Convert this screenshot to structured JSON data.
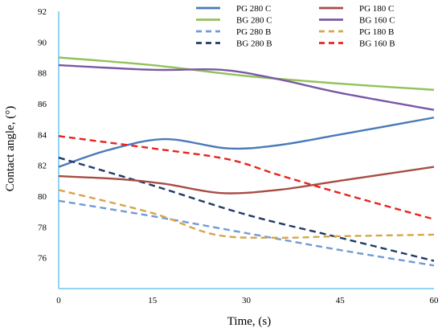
{
  "chart_data": {
    "type": "line",
    "xlabel": "Time, (s)",
    "ylabel": "Contact angle, (°)",
    "xlim": [
      0,
      60
    ],
    "ylim": [
      74,
      92
    ],
    "x_ticks": [
      "0",
      "15",
      "30",
      "45",
      "60"
    ],
    "y_ticks": [
      "76",
      "78",
      "80",
      "82",
      "84",
      "86",
      "88",
      "90",
      "92"
    ],
    "grid": false,
    "legend_position": "top-right",
    "series": [
      {
        "name": "PG 280 C",
        "color": "#4a7ab8",
        "dash": "solid",
        "x": [
          0,
          8,
          17,
          27,
          35,
          45,
          60
        ],
        "y": [
          81.9,
          83.0,
          83.7,
          83.1,
          83.3,
          84.0,
          85.1
        ]
      },
      {
        "name": "BG 280 C",
        "color": "#92c25a",
        "dash": "solid",
        "x": [
          0,
          15,
          30,
          45,
          60
        ],
        "y": [
          89.0,
          88.5,
          87.8,
          87.3,
          86.9
        ]
      },
      {
        "name": "PG 280 B",
        "color": "#6f9bd6",
        "dash": "dashed",
        "x": [
          0,
          15,
          30,
          45,
          60
        ],
        "y": [
          79.7,
          78.7,
          77.6,
          76.5,
          75.5
        ]
      },
      {
        "name": "BG 280 B",
        "color": "#1f3b66",
        "dash": "dashed",
        "x": [
          0,
          15,
          30,
          45,
          60
        ],
        "y": [
          82.5,
          80.7,
          78.8,
          77.3,
          75.8
        ]
      },
      {
        "name": "PG 180 C",
        "color": "#a84c45",
        "dash": "solid",
        "x": [
          0,
          10,
          17,
          26,
          35,
          45,
          60
        ],
        "y": [
          81.3,
          81.1,
          80.8,
          80.2,
          80.4,
          81.0,
          81.9
        ]
      },
      {
        "name": "BG 160 C",
        "color": "#7b58a6",
        "dash": "solid",
        "x": [
          0,
          15,
          26,
          35,
          45,
          60
        ],
        "y": [
          88.5,
          88.2,
          88.2,
          87.6,
          86.7,
          85.6
        ]
      },
      {
        "name": "PG 180 B",
        "color": "#d6a64a",
        "dash": "dashed",
        "x": [
          0,
          15,
          25,
          35,
          45,
          60
        ],
        "y": [
          80.4,
          78.9,
          77.5,
          77.3,
          77.4,
          77.5
        ]
      },
      {
        "name": "BG 160 B",
        "color": "#e8241f",
        "dash": "dashed",
        "x": [
          0,
          15,
          27,
          35,
          45,
          60
        ],
        "y": [
          83.9,
          83.1,
          82.4,
          81.4,
          80.2,
          78.5
        ]
      }
    ],
    "legend_columns": [
      [
        "PG 280 C",
        "BG 280 C",
        "PG 280 B",
        "BG 280 B"
      ],
      [
        "PG 180 C",
        "BG 160 C",
        "PG 180 B",
        "BG 160 B"
      ]
    ],
    "axis_color": "#6ec6f0"
  }
}
